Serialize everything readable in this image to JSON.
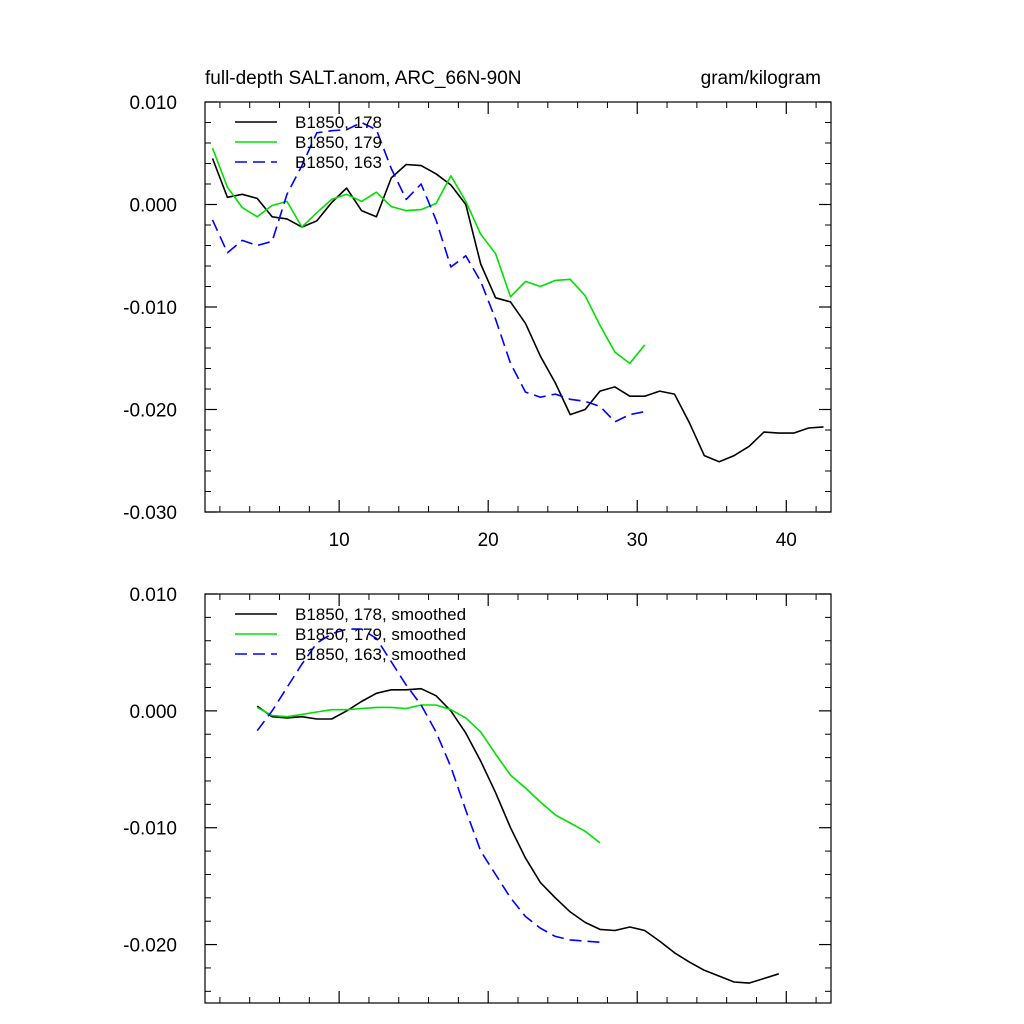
{
  "chart_data": [
    {
      "type": "line",
      "title": "full-depth SALT.anom, ARC_66N-90N",
      "units": "gram/kilogram",
      "xlabel": "",
      "ylabel": "",
      "xlim": [
        1,
        43
      ],
      "ylim": [
        -0.03,
        0.01
      ],
      "xticks": [
        10,
        20,
        30,
        40
      ],
      "xtick_labels": [
        "10",
        "20",
        "30",
        "40"
      ],
      "yticks": [
        0.01,
        0.0,
        -0.01,
        -0.02,
        -0.03
      ],
      "ytick_labels": [
        "0.010",
        "0.000",
        "-0.010",
        "-0.020",
        "-0.030"
      ],
      "legend_position": "top-left",
      "series": [
        {
          "name": "B1850, 178",
          "color": "#000000",
          "dash": "solid",
          "x": [
            1.5,
            2.5,
            3.5,
            4.5,
            5.5,
            6.5,
            7.5,
            8.5,
            9.5,
            10.5,
            11.5,
            12.5,
            13.5,
            14.5,
            15.5,
            16.5,
            17.5,
            18.5,
            19.5,
            20.5,
            21.5,
            22.5,
            23.5,
            24.5,
            25.5,
            26.5,
            27.5,
            28.5,
            29.5,
            30.5,
            31.5,
            32.5,
            33.5,
            34.5,
            35.5,
            36.5,
            37.5,
            38.5,
            39.5,
            40.5,
            41.5,
            42.5
          ],
          "y": [
            0.0045,
            0.0007,
            0.001,
            0.0006,
            -0.0012,
            -0.0014,
            -0.0022,
            -0.0016,
            0.0002,
            0.0016,
            -0.0006,
            -0.0012,
            0.0026,
            0.0039,
            0.0038,
            0.003,
            0.0019,
            0.0,
            -0.0058,
            -0.0091,
            -0.0095,
            -0.0116,
            -0.0148,
            -0.0174,
            -0.0205,
            -0.02,
            -0.0182,
            -0.0178,
            -0.0187,
            -0.0187,
            -0.0182,
            -0.0185,
            -0.0213,
            -0.0245,
            -0.0251,
            -0.0245,
            -0.0236,
            -0.0222,
            -0.0223,
            -0.0223,
            -0.0218,
            -0.0217
          ]
        },
        {
          "name": "B1850, 179",
          "color": "#00e000",
          "dash": "solid",
          "x": [
            1.5,
            2.5,
            3.5,
            4.5,
            5.5,
            6.5,
            7.5,
            8.5,
            9.5,
            10.5,
            11.5,
            12.5,
            13.5,
            14.5,
            15.5,
            16.5,
            17.5,
            18.5,
            19.5,
            20.5,
            21.5,
            22.5,
            23.5,
            24.5,
            25.5,
            26.5,
            27.5,
            28.5,
            29.5,
            30.5
          ],
          "y": [
            0.0055,
            0.0017,
            -0.0003,
            -0.0012,
            -0.0001,
            0.0003,
            -0.0022,
            -0.0008,
            0.0005,
            0.001,
            0.0003,
            0.0012,
            -0.0002,
            -0.0006,
            -0.0005,
            0.0001,
            0.0028,
            0.0003,
            -0.0029,
            -0.0048,
            -0.009,
            -0.0075,
            -0.008,
            -0.0074,
            -0.0073,
            -0.0089,
            -0.0118,
            -0.0144,
            -0.0155,
            -0.0137
          ]
        },
        {
          "name": "B1850, 163",
          "color": "#0000ff",
          "dash": "dashed",
          "x": [
            1.5,
            2.5,
            3.5,
            4.5,
            5.5,
            6.5,
            7.5,
            8.5,
            9.5,
            10.5,
            11.5,
            12.5,
            13.5,
            14.5,
            15.5,
            16.5,
            17.5,
            18.5,
            19.5,
            20.5,
            21.5,
            22.5,
            23.5,
            24.5,
            25.5,
            26.5,
            27.5,
            28.5,
            29.5,
            30.5
          ],
          "y": [
            -0.0015,
            -0.0047,
            -0.0035,
            -0.004,
            -0.0036,
            0.001,
            0.0038,
            0.007,
            0.0072,
            0.0073,
            0.008,
            0.0073,
            0.0035,
            0.0005,
            0.002,
            -0.0015,
            -0.0061,
            -0.005,
            -0.0075,
            -0.0112,
            -0.0155,
            -0.0183,
            -0.0188,
            -0.0185,
            -0.019,
            -0.0192,
            -0.0197,
            -0.0212,
            -0.0205,
            -0.0202
          ]
        }
      ]
    },
    {
      "type": "line",
      "title": "",
      "xlabel": "",
      "ylabel": "",
      "xlim": [
        1,
        43
      ],
      "ylim": [
        -0.025,
        0.01
      ],
      "xticks": [
        10,
        20,
        30,
        40
      ],
      "xtick_labels": [],
      "yticks": [
        0.01,
        0.0,
        -0.01,
        -0.02
      ],
      "ytick_labels": [
        "0.010",
        "0.000",
        "-0.010",
        "-0.020"
      ],
      "legend_position": "top-left",
      "series": [
        {
          "name": "B1850, 178, smoothed",
          "color": "#000000",
          "dash": "solid",
          "x": [
            4.5,
            5.5,
            6.5,
            7.5,
            8.5,
            9.5,
            10.5,
            11.5,
            12.5,
            13.5,
            14.5,
            15.5,
            16.5,
            17.5,
            18.5,
            19.5,
            20.5,
            21.5,
            22.5,
            23.5,
            24.5,
            25.5,
            26.5,
            27.5,
            28.5,
            29.5,
            30.5,
            31.5,
            32.5,
            33.5,
            34.5,
            35.5,
            36.5,
            37.5,
            38.5,
            39.5
          ],
          "y": [
            0.0004,
            -0.0005,
            -0.0006,
            -0.0005,
            -0.0007,
            -0.0007,
            0.0,
            0.0008,
            0.0015,
            0.0018,
            0.0018,
            0.0019,
            0.0013,
            0.0,
            -0.0019,
            -0.0043,
            -0.007,
            -0.01,
            -0.0126,
            -0.0147,
            -0.016,
            -0.0172,
            -0.0181,
            -0.0187,
            -0.0188,
            -0.0185,
            -0.0188,
            -0.0197,
            -0.0207,
            -0.0215,
            -0.0222,
            -0.0227,
            -0.0232,
            -0.0233,
            -0.0229,
            -0.0225
          ]
        },
        {
          "name": "B1850, 179, smoothed",
          "color": "#00e000",
          "dash": "solid",
          "x": [
            4.5,
            5.5,
            6.5,
            7.5,
            8.5,
            9.5,
            10.5,
            11.5,
            12.5,
            13.5,
            14.5,
            15.5,
            16.5,
            17.5,
            18.5,
            19.5,
            20.5,
            21.5,
            22.5,
            23.5,
            24.5,
            25.5,
            26.5,
            27.5
          ],
          "y": [
            0.0003,
            -0.0004,
            -0.0005,
            -0.0003,
            -0.0001,
            0.0001,
            0.0001,
            0.0002,
            0.0003,
            0.0003,
            0.0002,
            0.0005,
            0.0005,
            0.0001,
            -0.0006,
            -0.0018,
            -0.0037,
            -0.0055,
            -0.0066,
            -0.0078,
            -0.0089,
            -0.0096,
            -0.0103,
            -0.0113
          ]
        },
        {
          "name": "B1850, 163, smoothed",
          "color": "#0000ff",
          "dash": "dashed",
          "x": [
            4.5,
            5.5,
            6.5,
            7.5,
            8.5,
            9.5,
            10.5,
            11.5,
            12.5,
            13.5,
            14.5,
            15.5,
            16.5,
            17.5,
            18.5,
            19.5,
            20.5,
            21.5,
            22.5,
            23.5,
            24.5,
            25.5,
            26.5,
            27.5
          ],
          "y": [
            -0.0017,
            0.0,
            0.002,
            0.004,
            0.0058,
            0.0066,
            0.007,
            0.007,
            0.0062,
            0.0042,
            0.0022,
            0.0005,
            -0.0018,
            -0.0048,
            -0.0085,
            -0.012,
            -0.014,
            -0.016,
            -0.0176,
            -0.0186,
            -0.0193,
            -0.0196,
            -0.0197,
            -0.0198
          ]
        }
      ]
    }
  ]
}
